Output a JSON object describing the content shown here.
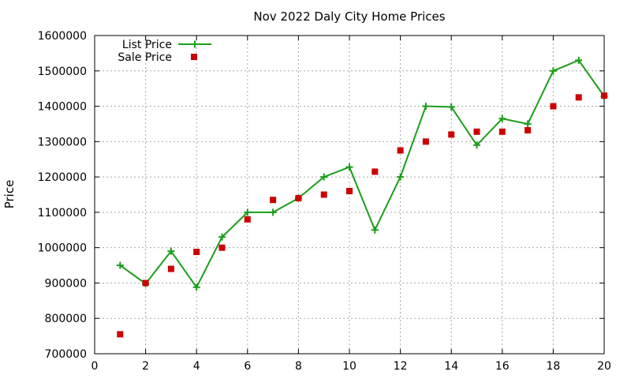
{
  "chart_data": {
    "type": "line",
    "title": "Nov 2022 Daly City Home Prices",
    "xlabel": "",
    "ylabel": "Price",
    "xlim": [
      0,
      20
    ],
    "ylim": [
      700000,
      1600000
    ],
    "x_ticks": [
      0,
      2,
      4,
      6,
      8,
      10,
      12,
      14,
      16,
      18,
      20
    ],
    "y_ticks": [
      700000,
      800000,
      900000,
      1000000,
      1100000,
      1200000,
      1300000,
      1400000,
      1500000,
      1600000
    ],
    "grid": true,
    "legend_position": "top-left",
    "series": [
      {
        "name": "List Price",
        "style": "line-with-plus-markers",
        "color": "#1a9e1a",
        "x": [
          1,
          2,
          3,
          4,
          5,
          6,
          7,
          8,
          9,
          10,
          11,
          12,
          13,
          14,
          15,
          16,
          17,
          18,
          19,
          20
        ],
        "values": [
          950000,
          898000,
          990000,
          888000,
          1030000,
          1100000,
          1100000,
          1140000,
          1200000,
          1228000,
          1050000,
          1200000,
          1400000,
          1398000,
          1290000,
          1365000,
          1350000,
          1500000,
          1530000,
          1428000
        ]
      },
      {
        "name": "Sale Price",
        "style": "square-markers",
        "color": "#cc0000",
        "x": [
          1,
          2,
          3,
          4,
          5,
          6,
          7,
          8,
          9,
          10,
          11,
          12,
          13,
          14,
          15,
          16,
          17,
          18,
          19,
          20
        ],
        "values": [
          755000,
          900000,
          940000,
          988000,
          1000000,
          1080000,
          1135000,
          1140000,
          1150000,
          1160000,
          1215000,
          1275000,
          1300000,
          1320000,
          1328000,
          1328000,
          1332000,
          1400000,
          1425000,
          1430000
        ]
      }
    ]
  }
}
